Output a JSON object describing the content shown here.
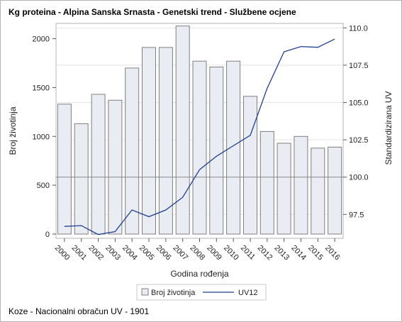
{
  "chart_data": {
    "type": "bar",
    "title": "Kg proteina - Alpina Sanska Srnasta - Genetski trend - Službene ocjene",
    "footnote": "Koze - Nacionalni obračun UV - 1901",
    "xlabel": "Godina rođenja",
    "ylabel_left": "Broj životinja",
    "ylabel_right": "Standardizirana UV",
    "categories": [
      "2000",
      "2001",
      "2002",
      "2003",
      "2004",
      "2005",
      "2006",
      "2007",
      "2008",
      "2009",
      "2010",
      "2011",
      "2012",
      "2013",
      "2014",
      "2015",
      "2016"
    ],
    "ylim_left": [
      0,
      2200
    ],
    "yticks_left": [
      "0",
      "500",
      "1000",
      "1500",
      "2000"
    ],
    "ylim_right": [
      95.9,
      110.3
    ],
    "yticks_right": [
      "97.5",
      "100.0",
      "102.5",
      "105.0",
      "107.5",
      "110.0"
    ],
    "reference_line": 100.0,
    "series": [
      {
        "name": "Broj životinja",
        "type": "bar",
        "axis": "left",
        "values": [
          1330,
          1130,
          1430,
          1370,
          1700,
          1910,
          1910,
          2130,
          1770,
          1710,
          1770,
          1410,
          1050,
          930,
          1000,
          880,
          890
        ],
        "color": "#e9ecf3",
        "stroke": "#7f7f7f"
      },
      {
        "name": "UV12",
        "type": "line",
        "axis": "right",
        "values": [
          96.7,
          96.75,
          96.15,
          96.35,
          97.8,
          97.35,
          97.8,
          98.65,
          100.5,
          101.4,
          102.1,
          102.8,
          105.95,
          108.4,
          108.75,
          108.7,
          109.25
        ],
        "color": "#1f3f8f"
      }
    ],
    "grid": true,
    "legend": "bottom-center"
  }
}
